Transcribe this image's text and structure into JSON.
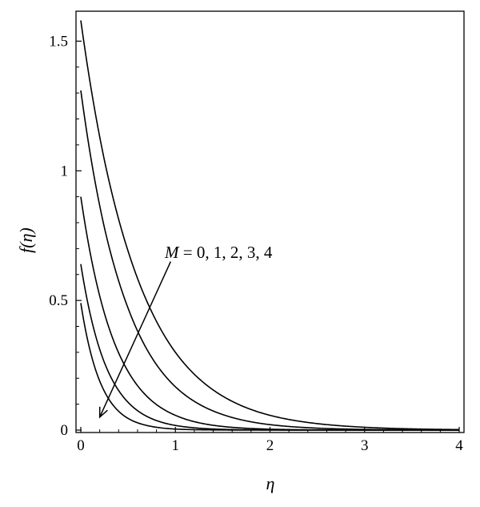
{
  "chart_data": {
    "type": "line",
    "title": "",
    "xlabel": "η",
    "ylabel": "f(η)",
    "xlim": [
      0,
      4
    ],
    "ylim": [
      0,
      1.6
    ],
    "x_ticks": [
      "0",
      "1",
      "2",
      "3",
      "4"
    ],
    "y_ticks": [
      "0",
      "0.5",
      "1",
      "1.5"
    ],
    "grid": false,
    "legend": "none",
    "annotation": {
      "var": "M",
      "eq": " = 0, 1, 2, 3, 4",
      "arrow_from": [
        0.95,
        0.65
      ],
      "arrow_to": [
        0.2,
        0.05
      ]
    },
    "series": [
      {
        "x": [
          0,
          0.25,
          0.5,
          0.75,
          1,
          1.5,
          2,
          2.5,
          3,
          3.5,
          4
        ],
        "values": [
          1.58,
          1.04,
          0.69,
          0.456,
          0.3,
          0.131,
          0.057,
          0.025,
          0.011,
          0.0047,
          0.002
        ]
      },
      {
        "x": [
          0,
          0.25,
          0.5,
          0.75,
          1,
          1.5,
          2,
          2.5,
          3,
          3.5,
          4
        ],
        "values": [
          1.31,
          0.78,
          0.47,
          0.28,
          0.167,
          0.06,
          0.021,
          0.0076,
          0.0027,
          0.001,
          0.0004
        ]
      },
      {
        "x": [
          0,
          0.25,
          0.5,
          0.75,
          1,
          1.5,
          2,
          2.5,
          3,
          3.5,
          4
        ],
        "values": [
          0.9,
          0.45,
          0.226,
          0.113,
          0.057,
          0.014,
          0.0036,
          0.0009,
          0.0002,
          0.0001,
          0.0
        ]
      },
      {
        "x": [
          0,
          0.25,
          0.5,
          0.75,
          1,
          1.5,
          2,
          2.5,
          3,
          3.5,
          4
        ],
        "values": [
          0.64,
          0.26,
          0.107,
          0.044,
          0.018,
          0.003,
          0.0005,
          0.0001,
          0.0,
          0.0,
          0.0
        ]
      },
      {
        "x": [
          0,
          0.25,
          0.5,
          0.75,
          1,
          1.5,
          2,
          2.5,
          3,
          3.5,
          4
        ],
        "values": [
          0.49,
          0.149,
          0.045,
          0.014,
          0.004,
          0.0004,
          0.0,
          0.0,
          0.0,
          0.0,
          0.0
        ]
      }
    ]
  }
}
